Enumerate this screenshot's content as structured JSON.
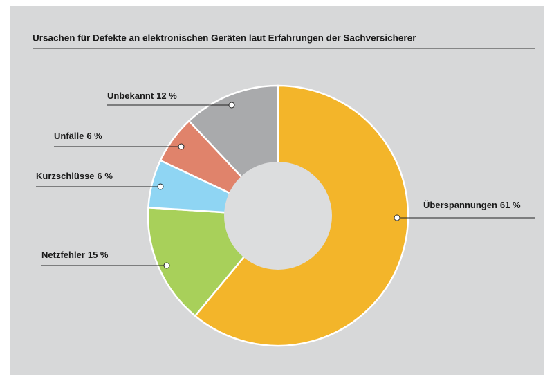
{
  "chart_data": {
    "type": "donut",
    "title": "Ursachen für Defekte an elektronischen Geräten laut Erfahrungen der Sachversicherer",
    "categories": [
      "Überspannungen",
      "Netzfehler",
      "Kurzschlüsse",
      "Unfälle",
      "Unbekannt"
    ],
    "values": [
      61,
      15,
      6,
      6,
      12
    ],
    "value_labels": [
      "61 %",
      "15 %",
      "6 %",
      "6 %",
      "12 %"
    ],
    "colors": [
      "#f3b52a",
      "#a8d05a",
      "#8fd5f3",
      "#e0836b",
      "#a9aaac"
    ]
  }
}
